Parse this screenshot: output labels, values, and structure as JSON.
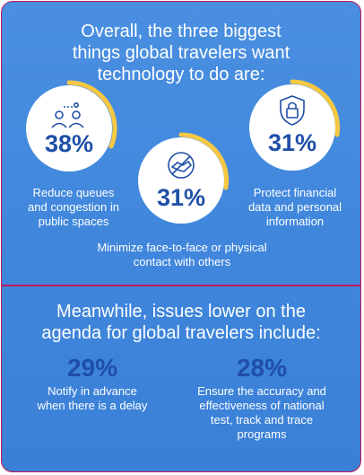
{
  "top": {
    "heading": "Overall, the three biggest\nthings global travelers want\ntechnology to do are:",
    "items": [
      {
        "percent": "38%",
        "value": 38,
        "label": "Reduce queues\nand congestion in\npublic spaces",
        "icon": "people-queue-icon"
      },
      {
        "percent": "31%",
        "value": 31,
        "label": "Minimize face-to-face or physical\ncontact with others",
        "icon": "no-handshake-icon"
      },
      {
        "percent": "31%",
        "value": 31,
        "label": "Protect financial\ndata and personal\ninformation",
        "icon": "shield-lock-icon"
      }
    ]
  },
  "bottom": {
    "heading": "Meanwhile, issues lower on the\nagenda for global travelers include:",
    "items": [
      {
        "percent": "29%",
        "value": 29,
        "label": "Notify in advance\nwhen there is a delay"
      },
      {
        "percent": "28%",
        "value": 28,
        "label": "Ensure the accuracy and\neffectiveness of national\ntest, track and trace\nprograms"
      }
    ]
  },
  "colors": {
    "background": "#4089dc",
    "accent": "#f6c842",
    "border": "#c2185b",
    "number": "#1f4fa8"
  }
}
